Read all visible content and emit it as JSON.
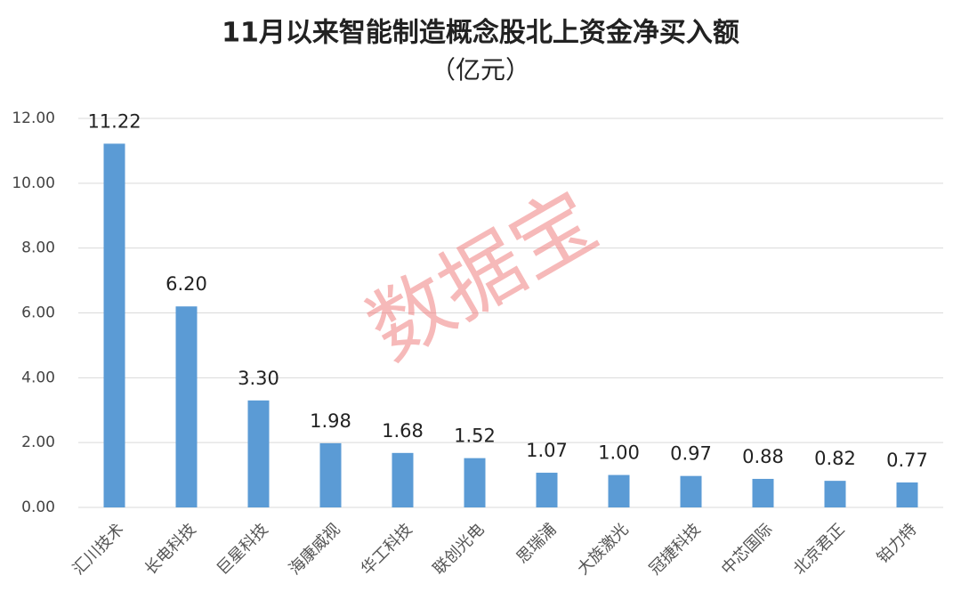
{
  "chart_data": {
    "type": "bar",
    "title": "11月以来智能制造概念股北上资金净买入额",
    "subtitle": "（亿元）",
    "watermark": "数据宝",
    "categories": [
      "汇川技术",
      "长电科技",
      "巨星科技",
      "海康威视",
      "华工科技",
      "联创光电",
      "思瑞浦",
      "大族激光",
      "冠捷科技",
      "中芯国际",
      "北京君正",
      "铂力特"
    ],
    "values": [
      11.22,
      6.2,
      3.3,
      1.98,
      1.68,
      1.52,
      1.07,
      1.0,
      0.97,
      0.88,
      0.82,
      0.77
    ],
    "value_labels": [
      "11.22",
      "6.20",
      "3.30",
      "1.98",
      "1.68",
      "1.52",
      "1.07",
      "1.00",
      "0.97",
      "0.88",
      "0.82",
      "0.77"
    ],
    "color": "#5b9bd5",
    "ylim": [
      0,
      12
    ],
    "yticks": [
      {
        "value": 0,
        "label": "0.00"
      },
      {
        "value": 2,
        "label": "2.00"
      },
      {
        "value": 4,
        "label": "4.00"
      },
      {
        "value": 6,
        "label": "6.00"
      },
      {
        "value": 8,
        "label": "8.00"
      },
      {
        "value": 10,
        "label": "10.00"
      },
      {
        "value": 12,
        "label": "12.00"
      }
    ],
    "grid": true
  }
}
